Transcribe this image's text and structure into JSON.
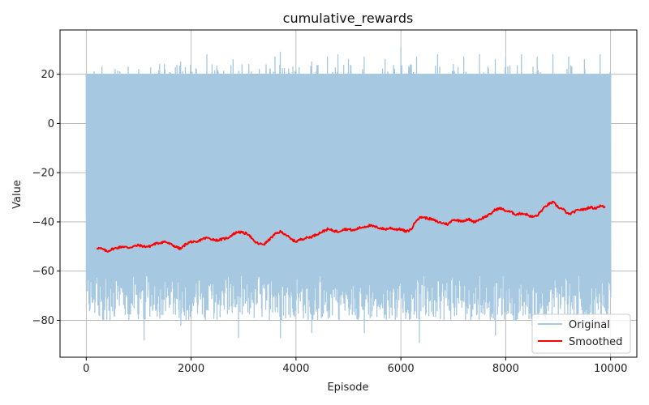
{
  "chart_data": {
    "type": "line",
    "title": "cumulative_rewards",
    "xlabel": "Episode",
    "ylabel": "Value",
    "xlim": [
      -500,
      10500
    ],
    "ylim": [
      -95,
      38
    ],
    "xticks": [
      0,
      2000,
      4000,
      6000,
      8000,
      10000
    ],
    "yticks": [
      20,
      0,
      -20,
      -40,
      -60,
      -80
    ],
    "grid": true,
    "legend_position": "bottom-right",
    "series": [
      {
        "name": "Original",
        "color": "#a6c8e0",
        "style": "dense-oscillating",
        "x_range": [
          0,
          10000
        ],
        "upper_baseline": 20,
        "lower_band": [
          -80,
          -60
        ],
        "spikes_up": [
          [
            150,
            21
          ],
          [
            300,
            23
          ],
          [
            550,
            22
          ],
          [
            800,
            23
          ],
          [
            1000,
            22
          ],
          [
            1400,
            24
          ],
          [
            1500,
            22
          ],
          [
            1800,
            25
          ],
          [
            2100,
            22
          ],
          [
            2300,
            28
          ],
          [
            2500,
            21
          ],
          [
            2800,
            26
          ],
          [
            3100,
            24
          ],
          [
            3300,
            22
          ],
          [
            3600,
            27
          ],
          [
            3700,
            29
          ],
          [
            4000,
            22
          ],
          [
            4300,
            25
          ],
          [
            4600,
            27
          ],
          [
            4800,
            28
          ],
          [
            5000,
            26
          ],
          [
            5300,
            27
          ],
          [
            5700,
            26
          ],
          [
            6000,
            31
          ],
          [
            6300,
            27
          ],
          [
            6700,
            28
          ],
          [
            7000,
            24
          ],
          [
            7200,
            27
          ],
          [
            7500,
            28
          ],
          [
            7800,
            26
          ],
          [
            8000,
            27
          ],
          [
            8300,
            28
          ],
          [
            8600,
            27
          ],
          [
            8900,
            28
          ],
          [
            9200,
            27
          ],
          [
            9500,
            26
          ],
          [
            9800,
            28
          ]
        ],
        "spikes_down": [
          [
            200,
            -8
          ],
          [
            260,
            -32
          ],
          [
            380,
            -32
          ],
          [
            650,
            -38
          ],
          [
            1300,
            -27
          ],
          [
            2150,
            -30
          ],
          [
            2700,
            -15
          ],
          [
            3250,
            -3
          ],
          [
            3300,
            -32
          ],
          [
            1100,
            -88
          ],
          [
            1800,
            -82
          ],
          [
            2900,
            -87
          ],
          [
            3700,
            -87
          ],
          [
            4300,
            -85
          ],
          [
            5300,
            -85
          ],
          [
            6350,
            -89
          ],
          [
            7800,
            -86
          ],
          [
            8500,
            -82
          ],
          [
            9300,
            -82
          ],
          [
            9700,
            -80
          ]
        ]
      },
      {
        "name": "Smoothed",
        "color": "#ff0000",
        "x": [
          200,
          300,
          400,
          500,
          600,
          700,
          800,
          900,
          1000,
          1100,
          1200,
          1300,
          1400,
          1500,
          1600,
          1700,
          1800,
          1900,
          2000,
          2100,
          2200,
          2300,
          2400,
          2500,
          2600,
          2700,
          2800,
          2900,
          3000,
          3100,
          3200,
          3300,
          3400,
          3500,
          3600,
          3700,
          3800,
          3900,
          4000,
          4100,
          4200,
          4300,
          4400,
          4500,
          4600,
          4700,
          4800,
          4900,
          5000,
          5100,
          5200,
          5300,
          5400,
          5500,
          5600,
          5700,
          5800,
          5900,
          6000,
          6100,
          6200,
          6300,
          6400,
          6500,
          6600,
          6700,
          6800,
          6900,
          7000,
          7100,
          7200,
          7300,
          7400,
          7500,
          7600,
          7700,
          7800,
          7900,
          8000,
          8100,
          8200,
          8300,
          8400,
          8500,
          8600,
          8700,
          8800,
          8900,
          9000,
          9100,
          9200,
          9300,
          9400,
          9500,
          9600,
          9700,
          9800,
          9900
        ],
        "values": [
          -50.5,
          -51,
          -52,
          -51,
          -50.5,
          -50,
          -50.5,
          -50,
          -49.5,
          -50,
          -50,
          -49,
          -48.5,
          -48,
          -49,
          -50,
          -51,
          -49,
          -48,
          -48.5,
          -47,
          -46.5,
          -47,
          -47.5,
          -47,
          -46.5,
          -45,
          -44,
          -44.5,
          -45,
          -48,
          -49,
          -49,
          -47,
          -45,
          -44,
          -45,
          -47,
          -48,
          -47,
          -46.5,
          -46,
          -45,
          -44,
          -43,
          -43.5,
          -44,
          -43,
          -43,
          -43.5,
          -42.5,
          -42,
          -41.5,
          -42,
          -42.5,
          -43,
          -42.5,
          -43,
          -43,
          -44,
          -43,
          -39,
          -38,
          -38.5,
          -39,
          -40,
          -40.5,
          -41,
          -39,
          -39.5,
          -39.5,
          -39,
          -40,
          -39,
          -38,
          -37,
          -35,
          -34.5,
          -35.5,
          -36,
          -37,
          -36.5,
          -37,
          -38,
          -37.5,
          -35,
          -33,
          -32,
          -34,
          -35,
          -37,
          -36,
          -35,
          -35,
          -34,
          -34.5,
          -33.5,
          -34
        ]
      }
    ]
  }
}
